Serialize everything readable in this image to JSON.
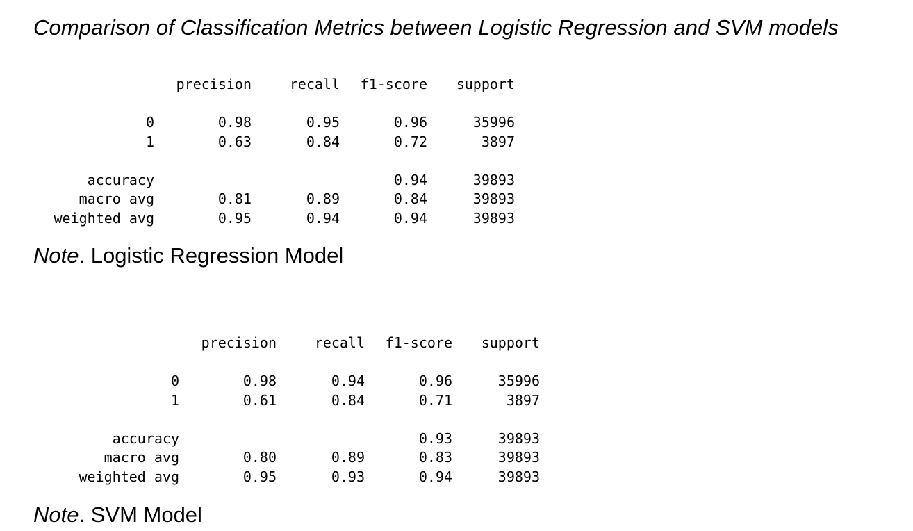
{
  "title": "Comparison of Classification Metrics between Logistic Regression and SVM models",
  "header": {
    "precision": "precision",
    "recall": "recall",
    "f1": "f1-score",
    "support": "support"
  },
  "reports": {
    "lr": {
      "classes": [
        {
          "label": "0",
          "precision": "0.98",
          "recall": "0.95",
          "f1": "0.96",
          "support": "35996"
        },
        {
          "label": "1",
          "precision": "0.63",
          "recall": "0.84",
          "f1": "0.72",
          "support": "3897"
        }
      ],
      "accuracy": {
        "label": "accuracy",
        "f1": "0.94",
        "support": "39893"
      },
      "macro": {
        "label": "macro avg",
        "precision": "0.81",
        "recall": "0.89",
        "f1": "0.84",
        "support": "39893"
      },
      "weighted": {
        "label": "weighted avg",
        "precision": "0.95",
        "recall": "0.94",
        "f1": "0.94",
        "support": "39893"
      }
    },
    "svm": {
      "classes": [
        {
          "label": "0",
          "precision": "0.98",
          "recall": "0.94",
          "f1": "0.96",
          "support": "35996"
        },
        {
          "label": "1",
          "precision": "0.61",
          "recall": "0.84",
          "f1": "0.71",
          "support": "3897"
        }
      ],
      "accuracy": {
        "label": "accuracy",
        "f1": "0.93",
        "support": "39893"
      },
      "macro": {
        "label": "macro avg",
        "precision": "0.80",
        "recall": "0.89",
        "f1": "0.83",
        "support": "39893"
      },
      "weighted": {
        "label": "weighted avg",
        "precision": "0.95",
        "recall": "0.93",
        "f1": "0.94",
        "support": "39893"
      }
    }
  },
  "notes": {
    "prefix": "Note",
    "lr": ". Logistic Regression Model",
    "svm": ". SVM Model"
  }
}
